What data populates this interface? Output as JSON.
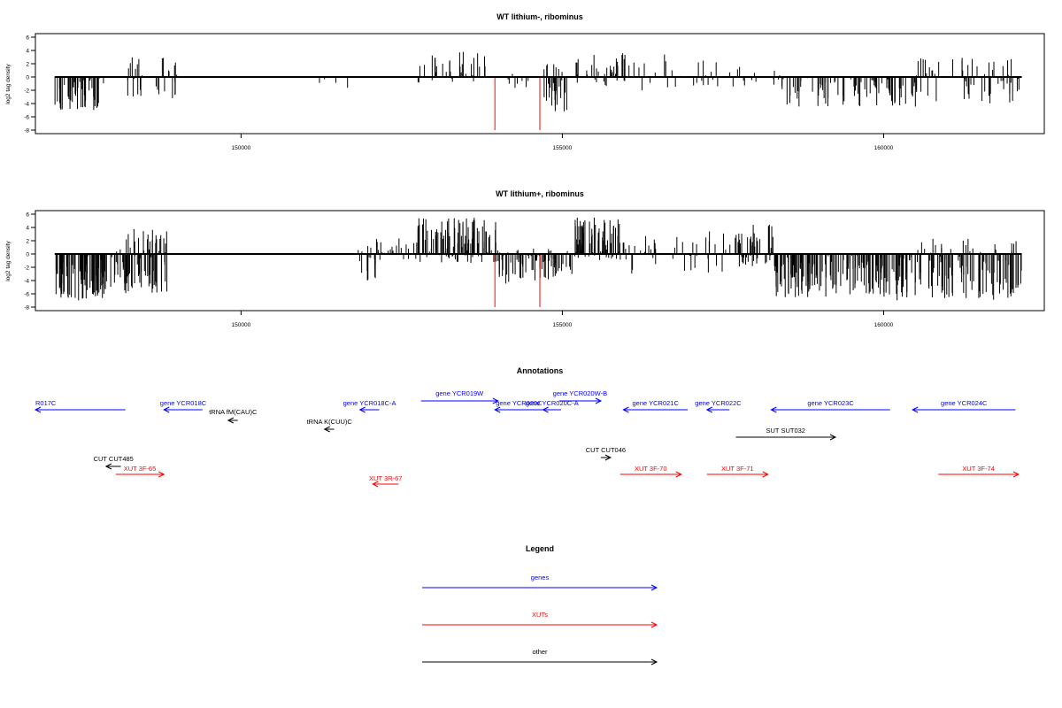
{
  "colors": {
    "gene": "#0000ff",
    "xut": "#ff0000",
    "other": "#000000",
    "highlight": "#ff0000",
    "signal": "#000000"
  },
  "chart_data": [
    {
      "type": "bar",
      "title": "WT lithium-, ribominus",
      "ylabel": "log2 tag density",
      "xlim": [
        146800,
        162500
      ],
      "ylim": [
        -8,
        6
      ],
      "xticks": [
        150000,
        155000,
        160000
      ],
      "xtick_labels": [
        "150000",
        "155000",
        "160000"
      ],
      "yticks": [
        -8,
        -6,
        -4,
        -2,
        0,
        2,
        4,
        6
      ],
      "ytick_labels": [
        "-8",
        "-6",
        "-4",
        "-2",
        "0",
        "2",
        "4",
        "6"
      ],
      "data_range": [
        147100,
        162150
      ],
      "regions": [
        {
          "from": 147100,
          "to": 147900,
          "min": -5.0,
          "max": 0,
          "n": 50
        },
        {
          "from": 148200,
          "to": 148500,
          "min": -3.5,
          "max": 3.0,
          "n": 14
        },
        {
          "from": 148600,
          "to": 149000,
          "min": -3.5,
          "max": 3.2,
          "n": 18
        },
        {
          "from": 151200,
          "to": 151800,
          "min": -2.0,
          "max": 0,
          "n": 4
        },
        {
          "from": 152700,
          "to": 153800,
          "min": -1.0,
          "max": 4.0,
          "n": 40
        },
        {
          "from": 154100,
          "to": 154500,
          "min": -2.0,
          "max": 0.5,
          "n": 10
        },
        {
          "from": 154700,
          "to": 155100,
          "min": -5.5,
          "max": 2.0,
          "n": 35
        },
        {
          "from": 155200,
          "to": 156200,
          "min": -2.0,
          "max": 4.0,
          "n": 40
        },
        {
          "from": 156200,
          "to": 157600,
          "min": -2.0,
          "max": 3.5,
          "n": 25
        },
        {
          "from": 157600,
          "to": 158400,
          "min": -1.5,
          "max": 2.5,
          "n": 15
        },
        {
          "from": 158400,
          "to": 160500,
          "min": -4.5,
          "max": 0,
          "n": 90
        },
        {
          "from": 160500,
          "to": 162150,
          "min": -4.0,
          "max": 3.0,
          "n": 60
        }
      ],
      "highlight_bars": [
        {
          "x": 153950,
          "y": -8
        },
        {
          "x": 154650,
          "y": -8
        }
      ]
    },
    {
      "type": "bar",
      "title": "WT lithium+, ribominus",
      "ylabel": "log2 tag density",
      "xlim": [
        146800,
        162500
      ],
      "ylim": [
        -8,
        6
      ],
      "xticks": [
        150000,
        155000,
        160000
      ],
      "xtick_labels": [
        "150000",
        "155000",
        "160000"
      ],
      "yticks": [
        -8,
        -6,
        -4,
        -2,
        0,
        2,
        4,
        6
      ],
      "ytick_labels": [
        "-8",
        "-6",
        "-4",
        "-2",
        "0",
        "2",
        "4",
        "6"
      ],
      "data_range": [
        147100,
        162150
      ],
      "regions": [
        {
          "from": 147100,
          "to": 147900,
          "min": -7.0,
          "max": 0,
          "n": 90
        },
        {
          "from": 147900,
          "to": 148200,
          "min": -6.0,
          "max": 1.0,
          "n": 20
        },
        {
          "from": 148200,
          "to": 148850,
          "min": -6.0,
          "max": 4.0,
          "n": 70
        },
        {
          "from": 151800,
          "to": 152100,
          "min": -4.0,
          "max": 1.5,
          "n": 18
        },
        {
          "from": 152100,
          "to": 152700,
          "min": -2.0,
          "max": 2.5,
          "n": 20
        },
        {
          "from": 152700,
          "to": 154000,
          "min": -1.5,
          "max": 5.5,
          "n": 110
        },
        {
          "from": 154000,
          "to": 154800,
          "min": -4.5,
          "max": 1.0,
          "n": 55
        },
        {
          "from": 154800,
          "to": 155200,
          "min": -3.5,
          "max": 2.0,
          "n": 20
        },
        {
          "from": 155200,
          "to": 155900,
          "min": -1.0,
          "max": 5.5,
          "n": 70
        },
        {
          "from": 155900,
          "to": 157700,
          "min": -3.0,
          "max": 3.5,
          "n": 45
        },
        {
          "from": 157700,
          "to": 158300,
          "min": -2.0,
          "max": 4.5,
          "n": 50
        },
        {
          "from": 158300,
          "to": 160500,
          "min": -7.0,
          "max": 0,
          "n": 170
        },
        {
          "from": 160500,
          "to": 162150,
          "min": -7.0,
          "max": 2.5,
          "n": 110
        }
      ],
      "highlight_bars": [
        {
          "x": 153950,
          "y": -8
        },
        {
          "x": 154650,
          "y": -8
        }
      ]
    }
  ],
  "annotations": {
    "title": "Annotations",
    "features": [
      {
        "label": "R017C",
        "type": "gene",
        "from": 146800,
        "to": 148200,
        "strand": "-"
      },
      {
        "label": "gene YCR018C",
        "type": "gene",
        "from": 148800,
        "to": 149400,
        "strand": "-"
      },
      {
        "label": "tRNA fM(CAU)C",
        "type": "other",
        "from": 149800,
        "to": 149950,
        "strand": "-"
      },
      {
        "label": "tRNA K(CUU)C",
        "type": "other",
        "from": 151300,
        "to": 151450,
        "strand": "-"
      },
      {
        "label": "gene YCR018C-A",
        "type": "gene",
        "from": 151850,
        "to": 152150,
        "strand": "-"
      },
      {
        "label": "gene YCR019W",
        "type": "gene",
        "from": 152800,
        "to": 154000,
        "strand": "+"
      },
      {
        "label": "gene YCR020C",
        "type": "gene",
        "from": 153950,
        "to": 154700,
        "strand": "-"
      },
      {
        "label": "gene YCR020C-A",
        "type": "gene",
        "from": 154700,
        "to": 154980,
        "strand": "-"
      },
      {
        "label": "gene YCR020W-B",
        "type": "gene",
        "from": 154950,
        "to": 155600,
        "strand": "+"
      },
      {
        "label": "gene YCR021C",
        "type": "gene",
        "from": 155950,
        "to": 156950,
        "strand": "-"
      },
      {
        "label": "gene YCR022C",
        "type": "gene",
        "from": 157250,
        "to": 157600,
        "strand": "-"
      },
      {
        "label": "gene YCR023C",
        "type": "gene",
        "from": 158250,
        "to": 160100,
        "strand": "-"
      },
      {
        "label": "gene YCR024C",
        "type": "gene",
        "from": 160450,
        "to": 162050,
        "strand": "-"
      },
      {
        "label": "CUT CUT485",
        "type": "other",
        "from": 147900,
        "to": 148130,
        "strand": "-"
      },
      {
        "label": "CUT CUT046",
        "type": "other",
        "from": 155600,
        "to": 155750,
        "strand": "+"
      },
      {
        "label": "SUT SUT032",
        "type": "other",
        "from": 157700,
        "to": 159250,
        "strand": "+"
      },
      {
        "label": "XUT 3F-65",
        "type": "xut",
        "from": 148050,
        "to": 148800,
        "strand": "+"
      },
      {
        "label": "XUT 3R-67",
        "type": "xut",
        "from": 152050,
        "to": 152450,
        "strand": "-"
      },
      {
        "label": "XUT 3F-70",
        "type": "xut",
        "from": 155900,
        "to": 156850,
        "strand": "+"
      },
      {
        "label": "XUT 3F-71",
        "type": "xut",
        "from": 157250,
        "to": 158200,
        "strand": "+"
      },
      {
        "label": "XUT 3F-74",
        "type": "xut",
        "from": 160850,
        "to": 162100,
        "strand": "+"
      }
    ]
  },
  "legend": {
    "title": "Legend",
    "items": [
      {
        "label": "genes",
        "type": "gene"
      },
      {
        "label": "XUTs",
        "type": "xut"
      },
      {
        "label": "other",
        "type": "other"
      }
    ]
  }
}
